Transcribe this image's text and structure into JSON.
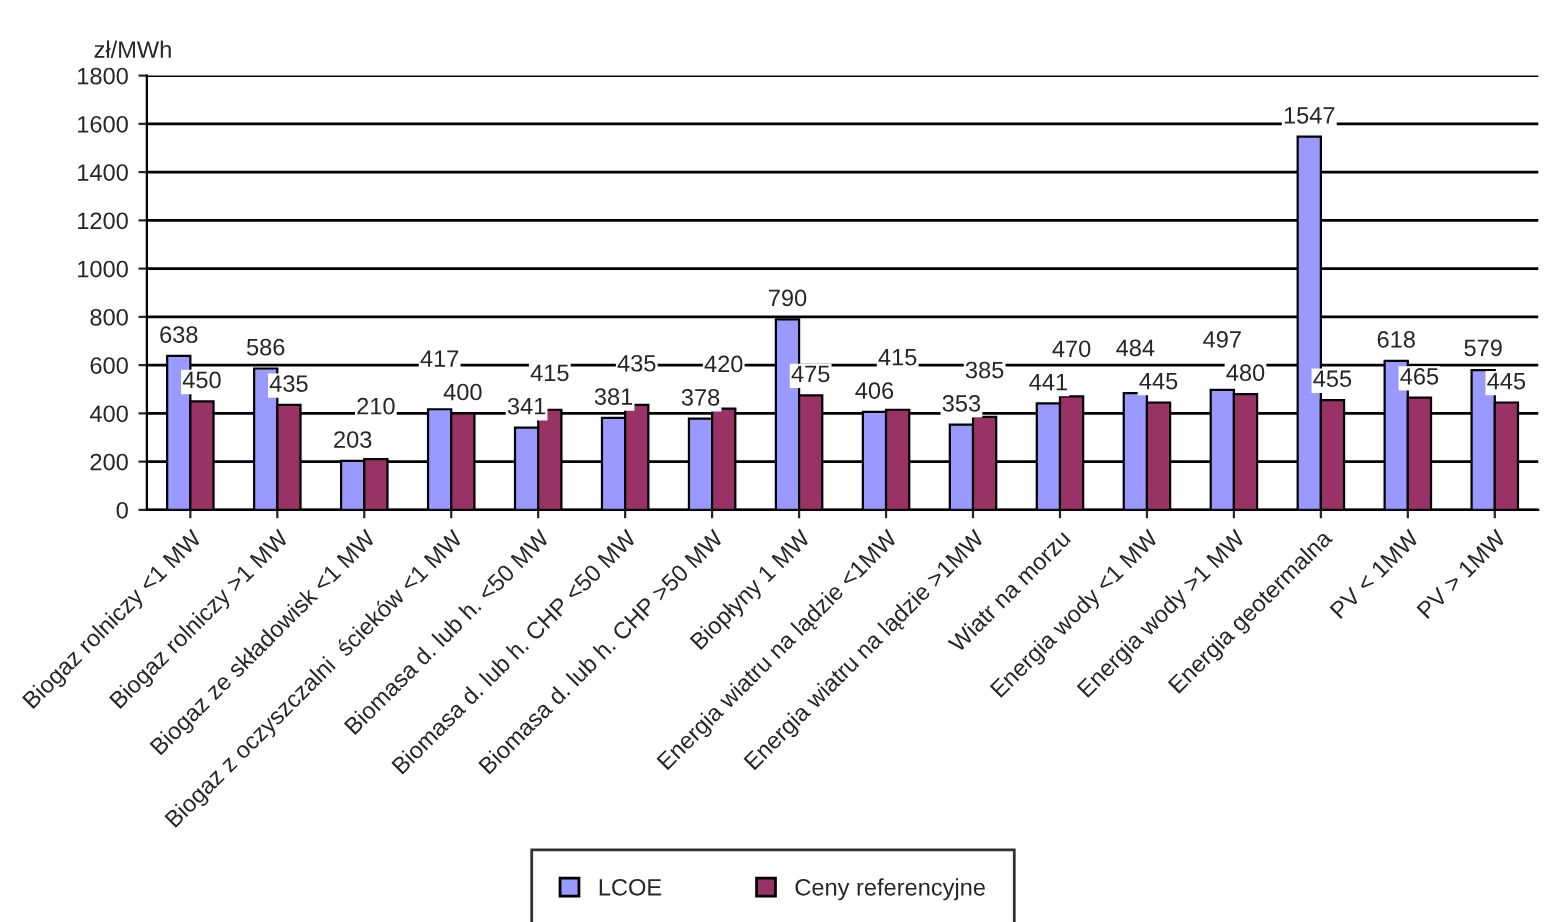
{
  "chart_data": {
    "type": "bar",
    "ylabel": "zł/MWh",
    "categories": [
      "Biogaz rolniczy <1 MW",
      "Biogaz rolniczy >1 MW",
      "Biogaz ze składowisk <1 MW",
      "Biogaz z oczyszczalni  ścieków <1 MW",
      "Biomasa d. lub h. <50 MW",
      "Biomasa d. lub h. CHP <50 MW",
      "Biomasa d. lub h. CHP >50 MW",
      "Biopłyny 1 MW",
      "Energia wiatru na lądzie <1MW",
      "Energia wiatru na lądzie >1MW",
      "Wiatr na morzu",
      "Energia wody <1 MW",
      "Energia wody >1 MW",
      "Energia geotermalna",
      "PV < 1MW",
      "PV > 1MW"
    ],
    "series": [
      {
        "name": "LCOE",
        "color": "#9999ff",
        "values": [
          638,
          586,
          203,
          417,
          341,
          381,
          378,
          790,
          406,
          353,
          441,
          484,
          497,
          1547,
          618,
          579
        ]
      },
      {
        "name": "Ceny referencyjne",
        "color": "#993366",
        "values": [
          450,
          435,
          210,
          400,
          415,
          435,
          420,
          475,
          415,
          385,
          470,
          445,
          480,
          455,
          465,
          445
        ]
      }
    ],
    "ylim": [
      0,
      1800
    ],
    "yticks": [
      0,
      200,
      400,
      600,
      800,
      1000,
      1200,
      1400,
      1600,
      1800
    ],
    "grid": "y",
    "legend": "bottom",
    "data_labels": true
  }
}
